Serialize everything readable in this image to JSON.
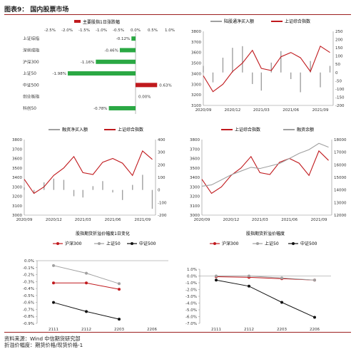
{
  "figure": {
    "title": "图表9：  国内股票市场",
    "source": "资料来源：Wind  中信期货研究部",
    "note": "折溢价幅度：期货价格/现货价格-1"
  },
  "colors": {
    "red": "#c0191d",
    "green": "#2aa843",
    "gray": "#a0a0a0",
    "black": "#111111",
    "axis": "#888888"
  },
  "chart_data": [
    {
      "type": "bar",
      "orientation": "horizontal",
      "title": "主要股指1日涨跌幅",
      "legend": [
        "主要股指1日涨跌幅"
      ],
      "categories": [
        "上证综指",
        "深圳成指",
        "沪深300",
        "上证50",
        "中证500",
        "创业板指",
        "科创50"
      ],
      "values": [
        -0.12,
        -0.46,
        -1.16,
        -1.98,
        0.63,
        0.0,
        -0.78
      ],
      "value_labels": [
        "-0.12%",
        "-0.46%",
        "-1.16%",
        "-1.98%",
        "0.63%",
        "0.00%",
        "-0.78%"
      ],
      "xticks": [
        "-2.5%",
        "-2.0%",
        "-1.5%",
        "-1.0%",
        "-0.5%",
        "0.0%",
        "0.5%",
        "1.0%"
      ],
      "xlim": [
        -2.5,
        1.0
      ]
    },
    {
      "type": "line",
      "title": "",
      "legend": [
        "陆股通净买入额",
        "上证综合指数"
      ],
      "x_ticks": [
        "2020/09",
        "2020/12",
        "2021/03",
        "2021/06",
        "2021/09"
      ],
      "y_left_ticks": [
        "3100",
        "3200",
        "3300",
        "3400",
        "3500",
        "3600",
        "3700",
        "3800"
      ],
      "y_right_ticks": [
        "-200",
        "-150",
        "-100",
        "-50",
        "0",
        "50",
        "100",
        "150",
        "200",
        "250"
      ],
      "y_left_lim": [
        3100,
        3800
      ],
      "y_right_lim": [
        -200,
        250
      ],
      "series": [
        {
          "name": "上证综合指数",
          "axis": "left",
          "color": "#c0191d",
          "style": "line",
          "x": [
            "2020/09/01",
            "2020/10/01",
            "2020/11/01",
            "2020/12/01",
            "2021/01/01",
            "2021/02/01",
            "2021/03/01",
            "2021/04/01",
            "2021/05/01",
            "2021/06/01",
            "2021/07/01",
            "2021/08/01",
            "2021/09/01",
            "2021/10/01"
          ],
          "values": [
            3380,
            3230,
            3300,
            3420,
            3500,
            3620,
            3450,
            3430,
            3560,
            3600,
            3550,
            3420,
            3660,
            3600
          ]
        },
        {
          "name": "陆股通净买入额",
          "axis": "right",
          "color": "#a0a0a0",
          "style": "bars",
          "x": [
            "2020/09/01",
            "2020/10/01",
            "2020/11/01",
            "2020/12/01",
            "2021/01/01",
            "2021/02/01",
            "2021/03/01",
            "2021/04/01",
            "2021/05/01",
            "2021/06/01",
            "2021/07/01",
            "2021/08/01",
            "2021/09/01",
            "2021/10/01"
          ],
          "values": [
            40,
            -60,
            90,
            150,
            160,
            -70,
            -110,
            60,
            130,
            -40,
            -120,
            70,
            -90,
            40
          ]
        }
      ]
    },
    {
      "type": "line",
      "title": "",
      "legend": [
        "融资净买入额",
        "上证综合指数"
      ],
      "x_ticks": [
        "2020/09",
        "2020/12",
        "2021/03",
        "2021/06",
        "2021/09"
      ],
      "y_left_ticks": [
        "3000",
        "3100",
        "3200",
        "3300",
        "3400",
        "3500",
        "3600",
        "3700",
        "3800"
      ],
      "y_right_ticks": [
        "-200",
        "-100",
        "0",
        "100",
        "200",
        "300",
        "400"
      ],
      "y_left_lim": [
        3000,
        3800
      ],
      "y_right_lim": [
        -200,
        400
      ],
      "series": [
        {
          "name": "上证综合指数",
          "axis": "left",
          "color": "#c0191d",
          "style": "line",
          "x": [
            "2020/09/01",
            "2020/10/01",
            "2020/11/01",
            "2020/12/01",
            "2021/01/01",
            "2021/02/01",
            "2021/03/01",
            "2021/04/01",
            "2021/05/01",
            "2021/06/01",
            "2021/07/01",
            "2021/08/01",
            "2021/09/01",
            "2021/10/01"
          ],
          "values": [
            3380,
            3230,
            3300,
            3420,
            3500,
            3620,
            3450,
            3430,
            3560,
            3600,
            3550,
            3420,
            3680,
            3590
          ]
        },
        {
          "name": "融资净买入额",
          "axis": "right",
          "color": "#a0a0a0",
          "style": "bars",
          "x": [
            "2020/09/01",
            "2020/10/01",
            "2020/11/01",
            "2020/12/01",
            "2021/01/01",
            "2021/02/01",
            "2021/03/01",
            "2021/04/01",
            "2021/05/01",
            "2021/06/01",
            "2021/07/01",
            "2021/08/01",
            "2021/09/01",
            "2021/10/01"
          ],
          "values": [
            20,
            -30,
            60,
            90,
            80,
            -50,
            -60,
            30,
            70,
            -20,
            -80,
            40,
            120,
            -150
          ]
        }
      ]
    },
    {
      "type": "line",
      "title": "",
      "legend": [
        "上证综合指数",
        "融资余额"
      ],
      "x_ticks": [
        "2020/09",
        "2020/12",
        "2021/03",
        "2021/06",
        "2021/09"
      ],
      "y_left_ticks": [
        "3000",
        "3100",
        "3200",
        "3300",
        "3400",
        "3500",
        "3600",
        "3700",
        "3800"
      ],
      "y_right_ticks": [
        "12000",
        "13000",
        "14000",
        "15000",
        "16000",
        "17000",
        "18000"
      ],
      "y_left_lim": [
        3000,
        3800
      ],
      "y_right_lim": [
        12000,
        18000
      ],
      "series": [
        {
          "name": "上证综合指数",
          "axis": "left",
          "color": "#c0191d",
          "style": "line",
          "x": [
            "2020/09/01",
            "2020/10/01",
            "2020/11/01",
            "2020/12/01",
            "2021/01/01",
            "2021/02/01",
            "2021/03/01",
            "2021/04/01",
            "2021/05/01",
            "2021/06/01",
            "2021/07/01",
            "2021/08/01",
            "2021/09/01",
            "2021/10/01"
          ],
          "values": [
            3380,
            3230,
            3300,
            3420,
            3500,
            3620,
            3450,
            3430,
            3560,
            3600,
            3550,
            3420,
            3680,
            3580
          ]
        },
        {
          "name": "融资余额",
          "axis": "right",
          "color": "#a0a0a0",
          "style": "line",
          "x": [
            "2020/09/01",
            "2020/10/01",
            "2020/11/01",
            "2020/12/01",
            "2021/01/01",
            "2021/02/01",
            "2021/03/01",
            "2021/04/01",
            "2021/05/01",
            "2021/06/01",
            "2021/07/01",
            "2021/08/01",
            "2021/09/01",
            "2021/10/01"
          ],
          "values": [
            14300,
            14400,
            14800,
            15200,
            15500,
            15800,
            15700,
            15900,
            16100,
            16500,
            16900,
            17200,
            17700,
            17400
          ]
        }
      ]
    },
    {
      "type": "line",
      "title": "股指期货折溢价幅度1日变化",
      "legend": [
        "沪深300",
        "上证50",
        "中证500"
      ],
      "categories": [
        "2111",
        "2112",
        "2203",
        "2206"
      ],
      "yticks": [
        "0.0%",
        "-0.1%",
        "-0.2%",
        "-0.3%",
        "-0.4%",
        "-0.5%",
        "-0.6%",
        "-0.7%",
        "-0.8%",
        "-0.9%"
      ],
      "ylim": [
        -0.9,
        0.0
      ],
      "series": [
        {
          "name": "沪深300",
          "color": "#c0191d",
          "values": [
            -0.32,
            -0.32,
            -0.41,
            null
          ]
        },
        {
          "name": "上证50",
          "color": "#a0a0a0",
          "values": [
            -0.07,
            -0.18,
            -0.33,
            null
          ]
        },
        {
          "name": "中证500",
          "color": "#111111",
          "values": [
            -0.6,
            -0.73,
            -0.84,
            null
          ]
        }
      ]
    },
    {
      "type": "line",
      "title": "股指期货折溢价幅度",
      "legend": [
        "沪深300",
        "上证50",
        "中证500"
      ],
      "categories": [
        "2111",
        "2112",
        "2203",
        "2206"
      ],
      "yticks": [
        "1.0%",
        "0.0%",
        "-1.0%",
        "-2.0%",
        "-3.0%",
        "-4.0%",
        "-5.0%",
        "-6.0%",
        "-7.0%"
      ],
      "ylim": [
        -7.0,
        1.0
      ],
      "series": [
        {
          "name": "沪深300",
          "color": "#c0191d",
          "values": [
            -0.1,
            -0.2,
            -0.4,
            -0.6
          ]
        },
        {
          "name": "上证50",
          "color": "#a0a0a0",
          "values": [
            0.0,
            0.0,
            -0.3,
            -0.6
          ]
        },
        {
          "name": "中证500",
          "color": "#111111",
          "values": [
            -0.6,
            -1.5,
            -3.9,
            -6.1
          ]
        }
      ]
    }
  ]
}
